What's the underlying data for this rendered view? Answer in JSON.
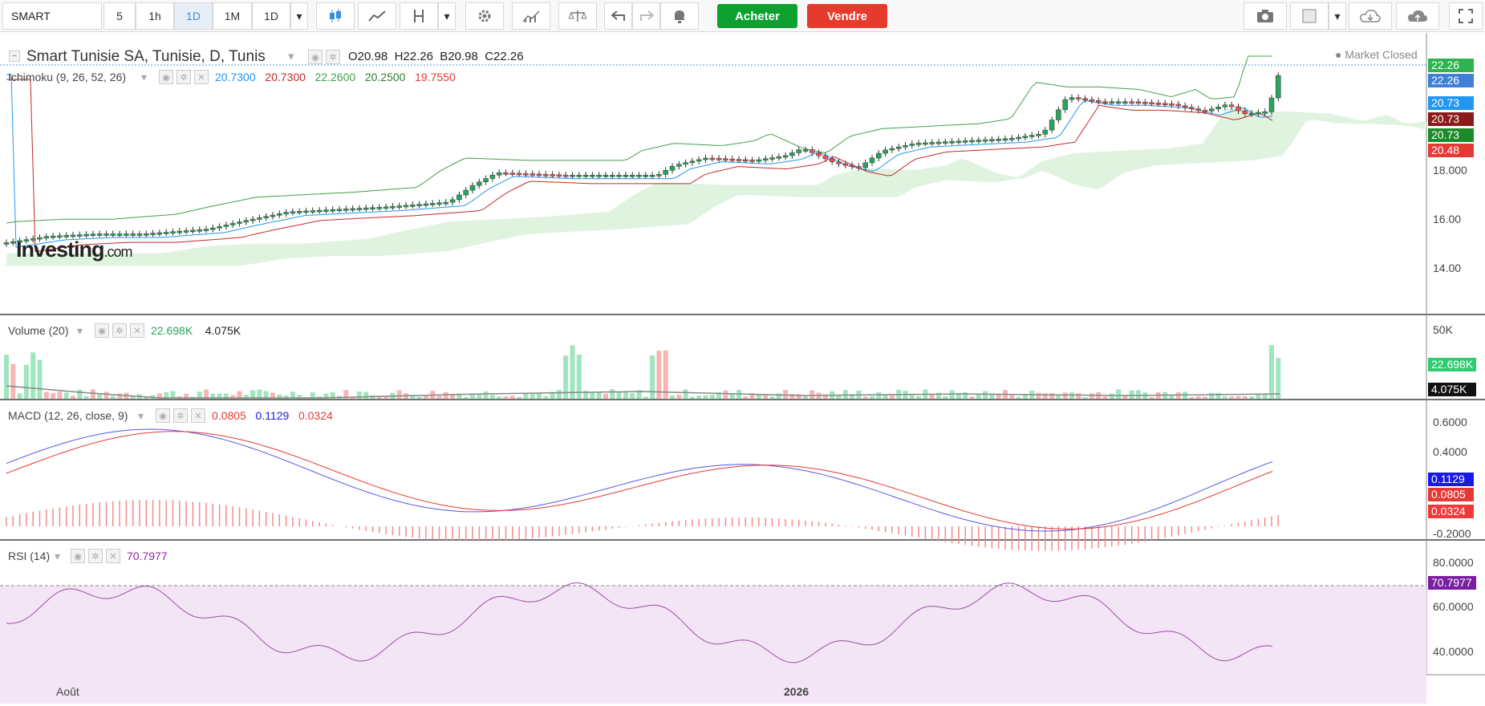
{
  "toolbar": {
    "symbol": "SMART",
    "intervals": [
      "5",
      "1h",
      "1D",
      "1M",
      "1D"
    ],
    "active_interval": "1D",
    "buy_label": "Acheter",
    "sell_label": "Vendre"
  },
  "header": {
    "title": "Smart Tunisie SA, Tunisie, D, Tunis",
    "o_label": "O",
    "o_value": "20.98",
    "h_label": "H",
    "h_value": "22.26",
    "b_label": "B",
    "b_value": "20.98",
    "c_label": "C",
    "c_value": "22.26",
    "status": "Market Closed"
  },
  "ichimoku": {
    "label": "Ichimoku (9, 26, 52, 26)",
    "values": [
      "20.7300",
      "20.7300",
      "22.2600",
      "20.2500",
      "19.7550"
    ],
    "colors": [
      "#2196f3",
      "#c62828",
      "#43a047",
      "#2e7d32",
      "#e53935"
    ]
  },
  "price_axis": {
    "ticks": [
      "18.000",
      "16.00",
      "14.00"
    ],
    "tags": [
      {
        "value": "22.26",
        "color": "#2fb34f"
      },
      {
        "value": "22.26",
        "color": "#3f7fd6"
      },
      {
        "value": "20.73",
        "color": "#2196f3"
      },
      {
        "value": "20.73",
        "color": "#8b1a1a"
      },
      {
        "value": "20.73",
        "color": "#1b8a2a"
      },
      {
        "value": "20.48",
        "color": "#e53935"
      }
    ]
  },
  "watermark": {
    "brand": "Investing",
    "suffix": ".com"
  },
  "volume": {
    "label": "Volume (20)",
    "value1": "22.698K",
    "value2": "4.075K",
    "ticks": [
      "50K"
    ],
    "tag1": "22.698K",
    "tag2": "4.075K"
  },
  "macd": {
    "label": "MACD (12, 26, close, 9)",
    "v1": "0.0805",
    "v2": "0.1129",
    "v3": "0.0324",
    "ticks": [
      "0.6000",
      "0.4000",
      "-0.2000"
    ],
    "tags": [
      {
        "value": "0.1129",
        "color": "#1a1ae6"
      },
      {
        "value": "0.0805",
        "color": "#e53935"
      },
      {
        "value": "0.0324",
        "color": "#f03a3a"
      }
    ]
  },
  "rsi": {
    "label": "RSI (14)",
    "value": "70.7977",
    "ticks": [
      "80.0000",
      "60.0000",
      "40.0000"
    ],
    "tag": "70.7977"
  },
  "time_axis": {
    "labels": [
      "Août",
      "2026"
    ]
  },
  "colors": {
    "up": "#26a65b",
    "down": "#ef5350",
    "cloud": "#dff3df",
    "rsi_band": "#f3e5f5",
    "rsi_line": "#9c4ea6"
  }
}
